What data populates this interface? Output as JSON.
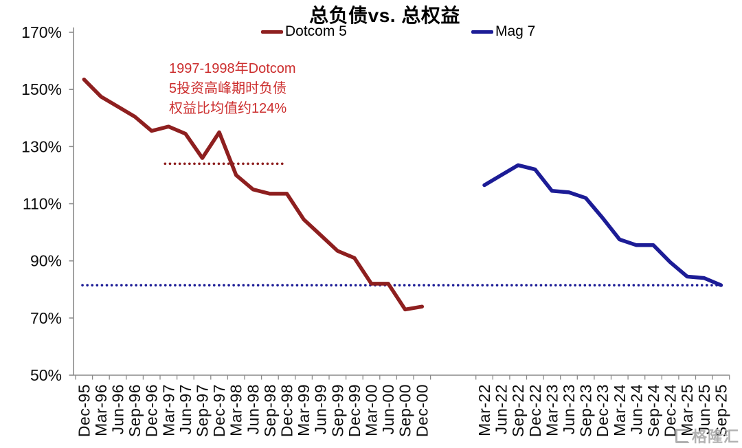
{
  "page": {
    "watermark": "格隆汇"
  },
  "chart_data": {
    "type": "line",
    "title": "总负债vs. 总权益",
    "legend_position": "top",
    "grid": false,
    "ylim": [
      50,
      170
    ],
    "y_tick_labels": [
      "170%",
      "150%",
      "130%",
      "110%",
      "90%",
      "70%",
      "50%"
    ],
    "y_tick_values": [
      170,
      150,
      130,
      110,
      90,
      70,
      50
    ],
    "series": [
      {
        "name": "Dotcom 5",
        "color": "#8e1f1f",
        "x": [
          "Dec-95",
          "Mar-96",
          "Jun-96",
          "Sep-96",
          "Dec-96",
          "Mar-97",
          "Jun-97",
          "Sep-97",
          "Dec-97",
          "Mar-98",
          "Jun-98",
          "Sep-98",
          "Dec-98",
          "Mar-99",
          "Jun-99",
          "Sep-99",
          "Dec-99",
          "Mar-00",
          "Jun-00",
          "Sep-00",
          "Dec-00"
        ],
        "values": [
          153.5,
          147.5,
          144,
          140.5,
          135.5,
          137,
          134.5,
          126,
          135,
          120,
          115,
          113.5,
          113.5,
          104.5,
          99,
          93.5,
          91,
          82,
          82,
          73,
          74
        ]
      },
      {
        "name": "Mag 7",
        "color": "#1c1c96",
        "x": [
          "Mar-22",
          "Jun-22",
          "Sep-22",
          "Dec-22",
          "Mar-23",
          "Jun-23",
          "Sep-23",
          "Dec-23",
          "Mar-24",
          "Jun-24",
          "Sep-24",
          "Dec-24",
          "Mar-25",
          "Jun-25",
          "Sep-25"
        ],
        "values": [
          116.5,
          120,
          123.5,
          122,
          114.5,
          114,
          112,
          105,
          97.5,
          95.5,
          95.5,
          89.5,
          84.5,
          84,
          81.5
        ]
      }
    ],
    "reference_lines": [
      {
        "value": 124,
        "style": "dotted",
        "color": "#8e1f1f",
        "series_index": 0,
        "x_start": "Mar-97",
        "x_end": "Dec-98"
      },
      {
        "value": 81.5,
        "style": "dotted",
        "color": "#1c1c96",
        "span": "full"
      }
    ],
    "annotation": {
      "color": "#cc2e2e",
      "lines": [
        "1997-1998年Dotcom",
        "5投资高峰期时负债",
        "权益比均值约124%"
      ]
    }
  }
}
